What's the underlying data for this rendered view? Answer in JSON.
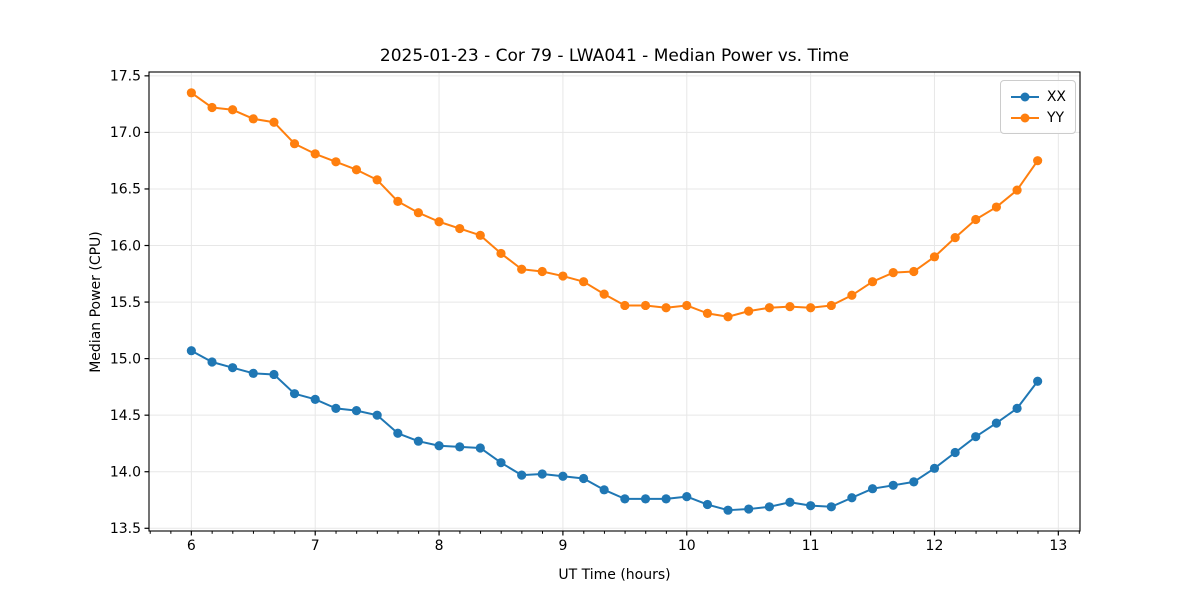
{
  "chart_data": {
    "type": "line",
    "title": "2025-01-23 - Cor 79 - LWA041 - Median Power vs. Time",
    "xlabel": "UT Time (hours)",
    "ylabel": "Median Power (CPU)",
    "xlim": [
      5.658,
      13.175
    ],
    "ylim": [
      13.476,
      17.534
    ],
    "xticks": [
      6,
      7,
      8,
      9,
      10,
      11,
      12,
      13
    ],
    "yticks": [
      13.5,
      14.0,
      14.5,
      15.0,
      15.5,
      16.0,
      16.5,
      17.0,
      17.5
    ],
    "x_minor_step": 0.1667,
    "grid": true,
    "grid_color": "#e7e7e7",
    "legend_position": "upper right",
    "x": [
      6,
      6.167,
      6.333,
      6.5,
      6.667,
      6.833,
      7,
      7.167,
      7.333,
      7.5,
      7.667,
      7.833,
      8,
      8.167,
      8.333,
      8.5,
      8.667,
      8.833,
      9,
      9.167,
      9.333,
      9.5,
      9.667,
      9.833,
      10,
      10.167,
      10.333,
      10.5,
      10.667,
      10.833,
      11,
      11.167,
      11.333,
      11.5,
      11.667,
      11.833,
      12,
      12.167,
      12.333,
      12.5,
      12.667,
      12.833
    ],
    "series": [
      {
        "name": "XX",
        "color": "#1f77b4",
        "values": [
          15.07,
          14.97,
          14.92,
          14.87,
          14.86,
          14.69,
          14.64,
          14.56,
          14.54,
          14.5,
          14.34,
          14.27,
          14.23,
          14.22,
          14.21,
          14.08,
          13.97,
          13.98,
          13.96,
          13.94,
          13.84,
          13.76,
          13.76,
          13.76,
          13.78,
          13.71,
          13.66,
          13.67,
          13.69,
          13.73,
          13.7,
          13.69,
          13.77,
          13.85,
          13.88,
          13.91,
          14.03,
          14.17,
          14.31,
          14.43,
          14.56,
          14.8
        ]
      },
      {
        "name": "YY",
        "color": "#ff7f0e",
        "values": [
          17.35,
          17.22,
          17.2,
          17.12,
          17.09,
          16.9,
          16.81,
          16.74,
          16.67,
          16.58,
          16.39,
          16.29,
          16.21,
          16.15,
          16.09,
          15.93,
          15.79,
          15.77,
          15.73,
          15.68,
          15.57,
          15.47,
          15.47,
          15.45,
          15.47,
          15.4,
          15.37,
          15.42,
          15.45,
          15.46,
          15.45,
          15.47,
          15.56,
          15.68,
          15.76,
          15.77,
          15.9,
          16.07,
          16.23,
          16.34,
          16.49,
          16.75
        ]
      }
    ]
  }
}
